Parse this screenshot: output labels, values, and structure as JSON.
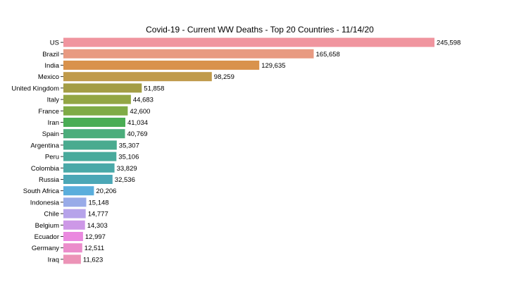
{
  "chart_data": {
    "type": "bar",
    "orientation": "horizontal",
    "title": "Covid-19 - Current WW Deaths - Top 20 Countries - 11/14/20",
    "xlabel": "",
    "ylabel": "",
    "categories": [
      "US",
      "Brazil",
      "India",
      "Mexico",
      "United Kingdom",
      "Italy",
      "France",
      "Iran",
      "Spain",
      "Argentina",
      "Peru",
      "Colombia",
      "Russia",
      "South Africa",
      "Indonesia",
      "Chile",
      "Belgium",
      "Ecuador",
      "Germany",
      "Iraq"
    ],
    "values": [
      245598,
      165658,
      129635,
      98259,
      51858,
      44683,
      42600,
      41034,
      40769,
      35307,
      35106,
      33829,
      32536,
      20206,
      15148,
      14777,
      14303,
      12997,
      12511,
      11623
    ],
    "data_labels": [
      "245,598",
      "165,658",
      "129,635",
      "98,259",
      "51,858",
      "44,683",
      "42,600",
      "41,034",
      "40,769",
      "35,307",
      "35,106",
      "33,829",
      "32,536",
      "20,206",
      "15,148",
      "14,777",
      "14,303",
      "12,997",
      "12,511",
      "11,623"
    ],
    "colors": [
      "#f0959f",
      "#e89a81",
      "#d9924c",
      "#c09a4a",
      "#a49d45",
      "#93a644",
      "#7fab46",
      "#4aad54",
      "#4bad7b",
      "#4aab8f",
      "#49aa9c",
      "#4aa9a8",
      "#4ba7b6",
      "#5aaedc",
      "#98abe8",
      "#b6a3ea",
      "#cd98e7",
      "#ea89df",
      "#eb8dcb",
      "#ec93b7"
    ],
    "xlim": [
      0,
      247000
    ],
    "grid": false,
    "legend": "none"
  }
}
